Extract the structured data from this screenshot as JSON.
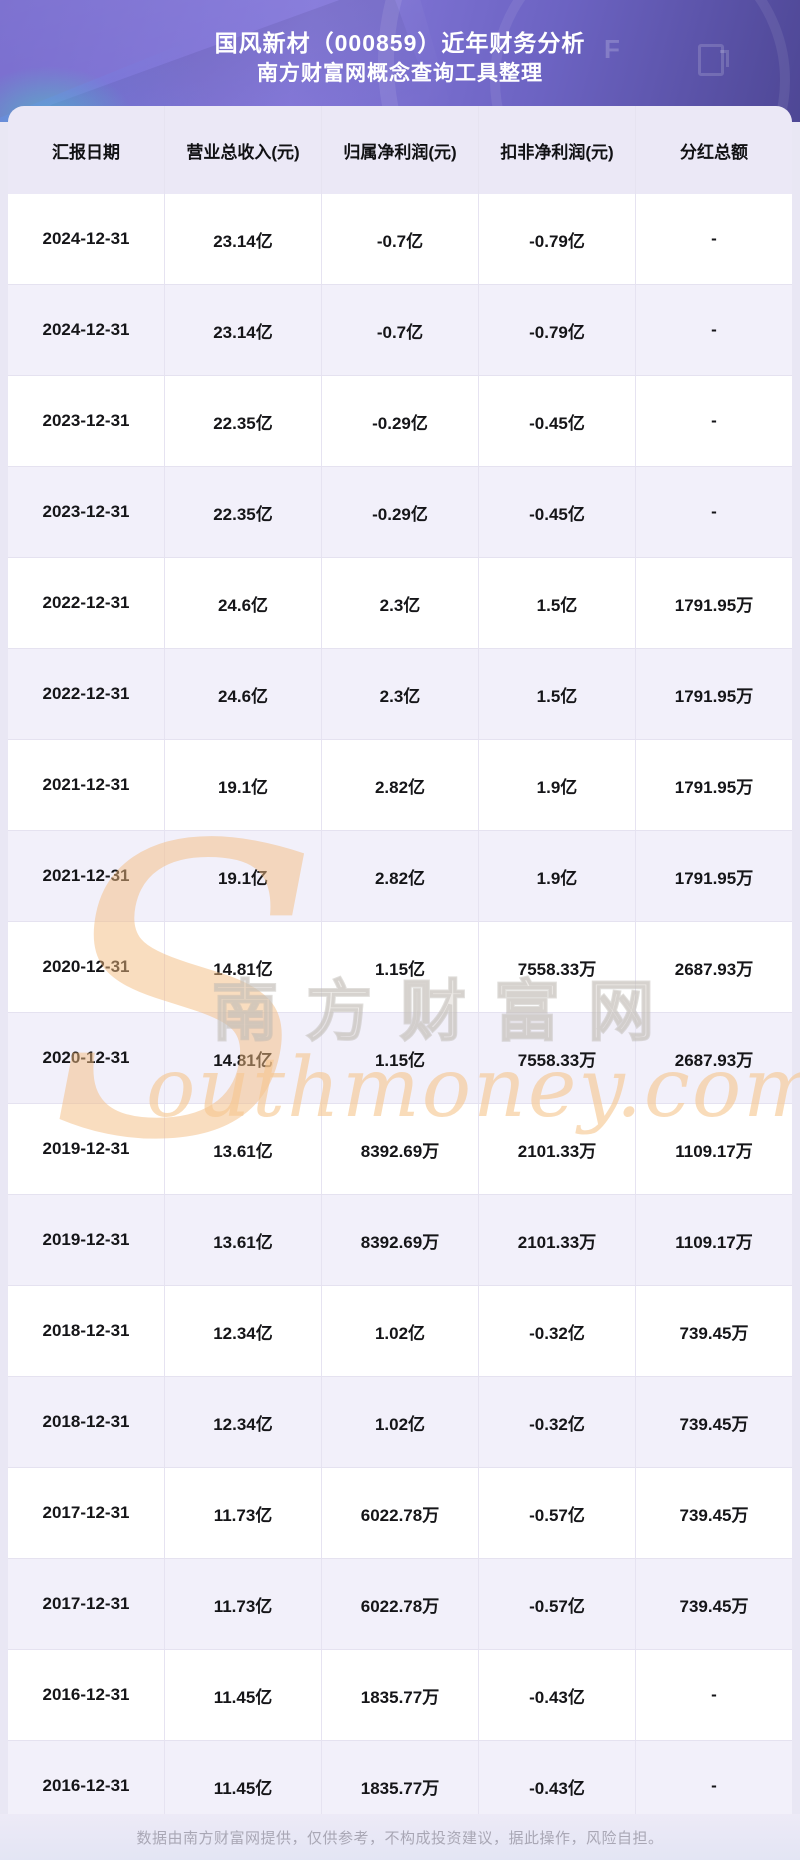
{
  "header": {
    "title_line1": "国风新材（000859）近年财务分析",
    "title_line2": "南方财富网概念查询工具整理"
  },
  "chart_data": {
    "type": "table",
    "title": "国风新材（000859）近年财务分析",
    "subtitle": "南方财富网概念查询工具整理",
    "columns": [
      "汇报日期",
      "营业总收入(元)",
      "归属净利润(元)",
      "扣非净利润(元)",
      "分红总额"
    ],
    "rows": [
      [
        "2024-12-31",
        "23.14亿",
        "-0.7亿",
        "-0.79亿",
        "-"
      ],
      [
        "2024-12-31",
        "23.14亿",
        "-0.7亿",
        "-0.79亿",
        "-"
      ],
      [
        "2023-12-31",
        "22.35亿",
        "-0.29亿",
        "-0.45亿",
        "-"
      ],
      [
        "2023-12-31",
        "22.35亿",
        "-0.29亿",
        "-0.45亿",
        "-"
      ],
      [
        "2022-12-31",
        "24.6亿",
        "2.3亿",
        "1.5亿",
        "1791.95万"
      ],
      [
        "2022-12-31",
        "24.6亿",
        "2.3亿",
        "1.5亿",
        "1791.95万"
      ],
      [
        "2021-12-31",
        "19.1亿",
        "2.82亿",
        "1.9亿",
        "1791.95万"
      ],
      [
        "2021-12-31",
        "19.1亿",
        "2.82亿",
        "1.9亿",
        "1791.95万"
      ],
      [
        "2020-12-31",
        "14.81亿",
        "1.15亿",
        "7558.33万",
        "2687.93万"
      ],
      [
        "2020-12-31",
        "14.81亿",
        "1.15亿",
        "7558.33万",
        "2687.93万"
      ],
      [
        "2019-12-31",
        "13.61亿",
        "8392.69万",
        "2101.33万",
        "1109.17万"
      ],
      [
        "2019-12-31",
        "13.61亿",
        "8392.69万",
        "2101.33万",
        "1109.17万"
      ],
      [
        "2018-12-31",
        "12.34亿",
        "1.02亿",
        "-0.32亿",
        "739.45万"
      ],
      [
        "2018-12-31",
        "12.34亿",
        "1.02亿",
        "-0.32亿",
        "739.45万"
      ],
      [
        "2017-12-31",
        "11.73亿",
        "6022.78万",
        "-0.57亿",
        "739.45万"
      ],
      [
        "2017-12-31",
        "11.73亿",
        "6022.78万",
        "-0.57亿",
        "739.45万"
      ],
      [
        "2016-12-31",
        "11.45亿",
        "1835.77万",
        "-0.43亿",
        "-"
      ],
      [
        "2016-12-31",
        "11.45亿",
        "1835.77万",
        "-0.43亿",
        "-"
      ]
    ]
  },
  "watermark": {
    "big_letter": "S",
    "cn_text": "南方财富网",
    "script_text": "outhmoney.com"
  },
  "footer": {
    "disclaimer": "数据由南方财富网提供，仅供参考，不构成投资建议，据此操作，风险自担。"
  },
  "colors": {
    "header_gradient_start": "#7468cd",
    "header_gradient_end": "#4e4795",
    "table_header_bg": "#ebe8f6",
    "row_bg": "#ffffff",
    "row_alt_bg": "#f2f0fa",
    "divider": "#e6e3f1",
    "footer_bg": "#e9e7f4",
    "footer_text": "#a9a7b5",
    "watermark_orange": "#f3bc80",
    "watermark_gray": "#d6d0ca",
    "teal_accent": "#46d0c0"
  }
}
